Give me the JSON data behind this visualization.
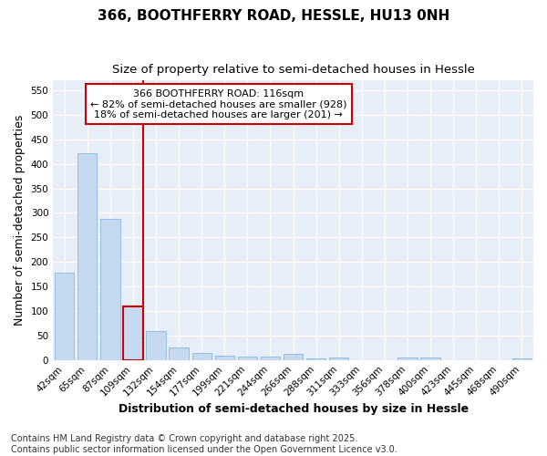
{
  "title": "366, BOOTHFERRY ROAD, HESSLE, HU13 0NH",
  "subtitle": "Size of property relative to semi-detached houses in Hessle",
  "xlabel": "Distribution of semi-detached houses by size in Hessle",
  "ylabel": "Number of semi-detached properties",
  "categories": [
    "42sqm",
    "65sqm",
    "87sqm",
    "109sqm",
    "132sqm",
    "154sqm",
    "177sqm",
    "199sqm",
    "221sqm",
    "244sqm",
    "266sqm",
    "288sqm",
    "311sqm",
    "333sqm",
    "356sqm",
    "378sqm",
    "400sqm",
    "423sqm",
    "445sqm",
    "468sqm",
    "490sqm"
  ],
  "values": [
    178,
    422,
    288,
    110,
    59,
    26,
    14,
    8,
    7,
    7,
    13,
    4,
    6,
    0,
    0,
    5,
    5,
    0,
    0,
    0,
    4
  ],
  "bar_color": "#c5d9f0",
  "bar_edge_color": "#7bafd4",
  "highlight_index": 3,
  "highlight_color": "#cc0000",
  "annotation_title": "366 BOOTHFERRY ROAD: 116sqm",
  "annotation_line1": "← 82% of semi-detached houses are smaller (928)",
  "annotation_line2": "18% of semi-detached houses are larger (201) →",
  "annotation_box_color": "#ffffff",
  "annotation_box_edge": "#cc0000",
  "ylim": [
    0,
    570
  ],
  "yticks": [
    0,
    50,
    100,
    150,
    200,
    250,
    300,
    350,
    400,
    450,
    500,
    550
  ],
  "footer_line1": "Contains HM Land Registry data © Crown copyright and database right 2025.",
  "footer_line2": "Contains public sector information licensed under the Open Government Licence v3.0.",
  "background_color": "#ffffff",
  "plot_background_color": "#e8eef8",
  "grid_color": "#ffffff",
  "title_fontsize": 11,
  "subtitle_fontsize": 9.5,
  "axis_label_fontsize": 9,
  "tick_fontsize": 7.5,
  "footer_fontsize": 7
}
